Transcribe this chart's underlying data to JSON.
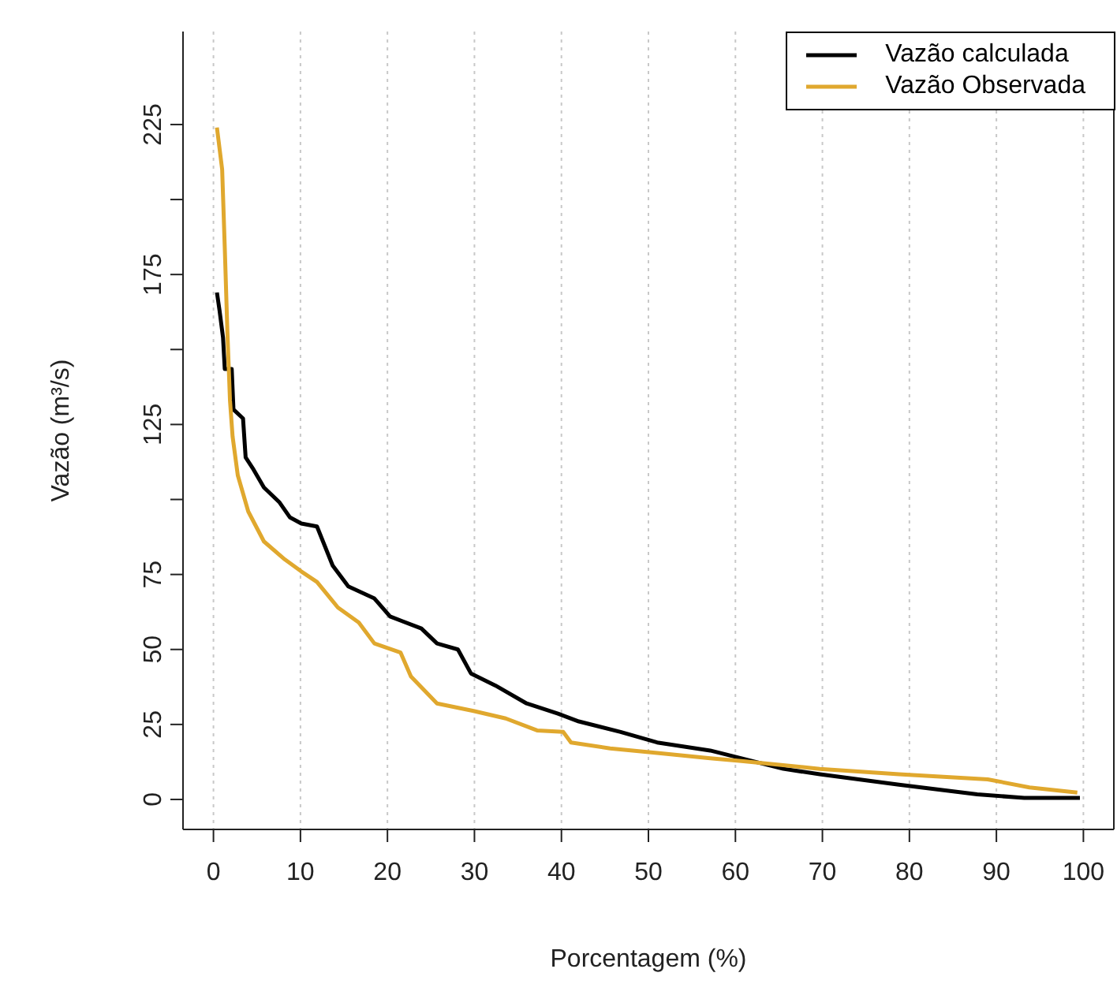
{
  "chart_data": {
    "type": "line",
    "xlabel": "Porcentagem (%)",
    "ylabel": "Vazão (m³/s)",
    "xlim": [
      -3.5,
      103.5
    ],
    "xticks": [
      0,
      10,
      20,
      30,
      40,
      50,
      60,
      70,
      80,
      90,
      100
    ],
    "ylim": [
      -10,
      256
    ],
    "yticks": [
      0,
      25,
      50,
      75,
      {
        "value": 100,
        "label": null
      },
      125,
      {
        "value": 150,
        "label": null
      },
      175,
      {
        "value": 200,
        "label": null
      },
      225
    ],
    "grid": "x",
    "legend": "top right",
    "line_style": "solid",
    "marker": "none",
    "series": [
      {
        "name": "Vazão calculada",
        "color": "#000000",
        "x": [
          0.4,
          0.7,
          1.1,
          1.3,
          2.1,
          2.3,
          3.4,
          3.7,
          4.6,
          5.8,
          7.6,
          8.8,
          10.1,
          11.9,
          13.7,
          15.5,
          18.5,
          20.3,
          23.9,
          25.7,
          28.1,
          29.6,
          32.4,
          36,
          39.6,
          42,
          46.8,
          51,
          57.1,
          65.5,
          69.7,
          78.8,
          87.8,
          93.2,
          99.6
        ],
        "values": [
          169,
          163,
          154,
          143.5,
          143.5,
          130,
          127,
          114,
          110,
          104,
          99,
          94,
          92,
          91,
          78,
          71,
          67,
          61,
          57,
          52,
          50,
          42,
          38,
          32,
          28.6,
          26,
          22.5,
          19,
          16.3,
          10.2,
          8.4,
          4.9,
          1.7,
          0.5,
          0.5
        ]
      },
      {
        "name": "Vazão Observada",
        "color": "#e0a82e",
        "x": [
          0.4,
          1,
          1.3,
          1.6,
          1.9,
          2.2,
          2.8,
          4,
          5.8,
          8.2,
          10.1,
          11.9,
          14.3,
          16.7,
          18.5,
          21.5,
          22.7,
          25.7,
          29.9,
          33.6,
          37.2,
          40.2,
          41.1,
          45.6,
          51,
          57.1,
          60.7,
          69.7,
          78.8,
          89,
          93.8,
          99.3
        ],
        "values": [
          224,
          210,
          184,
          156,
          133,
          121,
          108,
          96,
          86,
          80,
          76,
          72.5,
          64,
          59,
          52,
          49,
          41,
          32,
          29.5,
          27,
          23,
          22.5,
          19,
          17,
          15.5,
          13.7,
          12.8,
          10.2,
          8.4,
          6.7,
          4,
          2.3
        ]
      }
    ]
  }
}
